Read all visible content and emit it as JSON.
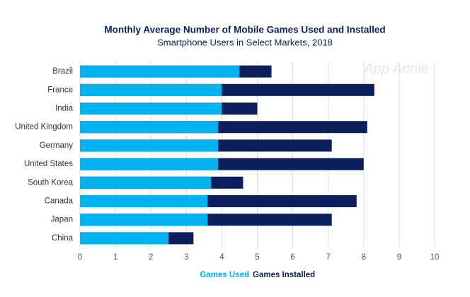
{
  "chart_data": {
    "type": "bar",
    "orientation": "horizontal",
    "title": "Monthly Average Number of Mobile Games Used and Installed",
    "subtitle": "Smartphone Users in Select Markets, 2018",
    "watermark": "App Annie",
    "categories": [
      "Brazil",
      "France",
      "India",
      "United Kingdom",
      "Germany",
      "United States",
      "South Korea",
      "Canada",
      "Japan",
      "China"
    ],
    "series": [
      {
        "name": "Games Used",
        "color": "#00b2ef",
        "values": [
          4.5,
          4.0,
          4.0,
          3.9,
          3.9,
          3.9,
          3.7,
          3.6,
          3.6,
          2.5
        ]
      },
      {
        "name": "Games Installed",
        "color": "#0b1f5c",
        "values": [
          5.4,
          8.3,
          5.0,
          8.1,
          7.1,
          8.0,
          4.6,
          7.8,
          7.1,
          3.2
        ]
      }
    ],
    "xlim": [
      0,
      10
    ],
    "xticks": [
      0,
      1,
      2,
      3,
      4,
      5,
      6,
      7,
      8,
      9,
      10
    ],
    "grid": true
  }
}
